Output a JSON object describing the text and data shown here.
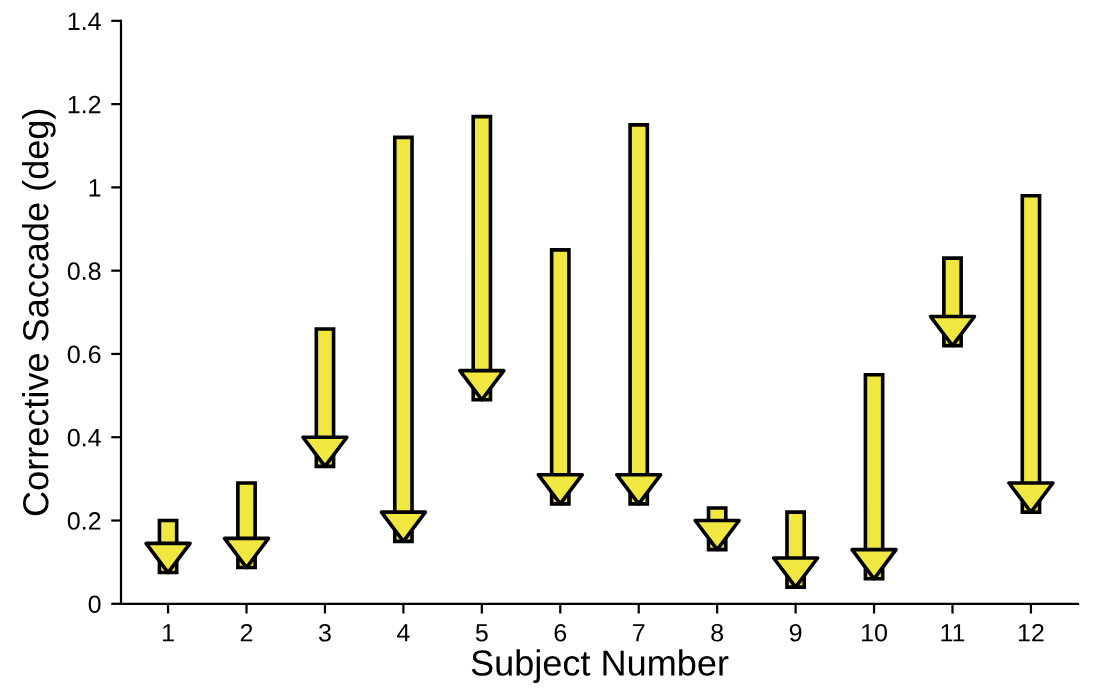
{
  "chart_data": {
    "type": "bar",
    "xlabel": "Subject Number",
    "ylabel": "Corrective Saccade (deg)",
    "categories": [
      "1",
      "2",
      "3",
      "4",
      "5",
      "6",
      "7",
      "8",
      "9",
      "10",
      "11",
      "12"
    ],
    "base": [
      0.2,
      0.29,
      0.66,
      1.12,
      1.17,
      0.85,
      1.15,
      0.23,
      0.22,
      0.55,
      0.83,
      0.98
    ],
    "values": [
      -0.125,
      -0.203,
      -0.33,
      -0.97,
      -0.68,
      -0.61,
      -0.91,
      -0.1,
      -0.18,
      -0.49,
      -0.21,
      -0.76
    ],
    "color": "#f0e840",
    "ylim": [
      0,
      1.4
    ],
    "yticks": [
      0,
      0.2,
      0.4,
      0.6,
      0.8,
      1,
      1.2,
      1.4
    ],
    "grid": false
  }
}
